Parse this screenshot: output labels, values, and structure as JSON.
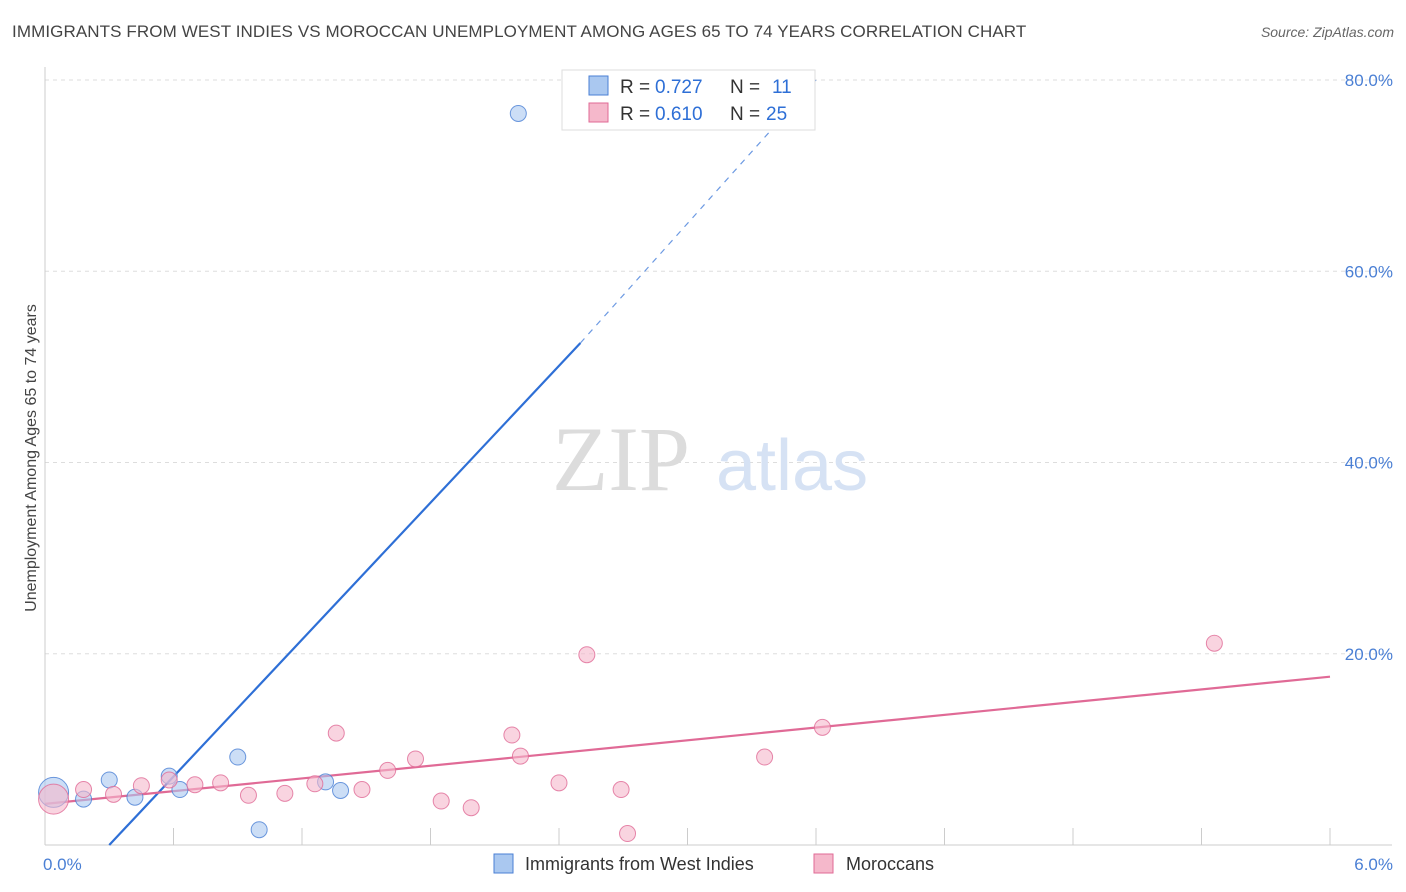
{
  "title": "IMMIGRANTS FROM WEST INDIES VS MOROCCAN UNEMPLOYMENT AMONG AGES 65 TO 74 YEARS CORRELATION CHART",
  "source": "Source: ZipAtlas.com",
  "watermark": {
    "zip": "ZIP",
    "atlas": "atlas"
  },
  "colors": {
    "blue": "#4a7fd4",
    "blue_fill": "#aac8f0",
    "blue_line": "#2e6fd6",
    "pink": "#e06a96",
    "pink_fill": "#f5b8cb",
    "grid": "#dddddd"
  },
  "chart_data": {
    "type": "scatter",
    "xlabel": "",
    "ylabel": "Unemployment Among Ages 65 to 74 years",
    "xlim": [
      0.0,
      6.0
    ],
    "ylim": [
      0.0,
      80.0
    ],
    "x_tick_labels": [
      {
        "value": 0.0,
        "label": "0.0%"
      },
      {
        "value": 6.0,
        "label": "6.0%"
      }
    ],
    "y_tick_labels": [
      {
        "value": 20,
        "label": "20.0%"
      },
      {
        "value": 40,
        "label": "40.0%"
      },
      {
        "value": 60,
        "label": "60.0%"
      },
      {
        "value": 80,
        "label": "80.0%"
      }
    ],
    "legend": [
      {
        "r_label": "R = ",
        "r_value": "0.727",
        "n_label": "N = ",
        "n_value": "11"
      },
      {
        "r_label": "R = ",
        "r_value": "0.610",
        "n_label": "N = ",
        "n_value": "25"
      }
    ],
    "series": [
      {
        "name": "Immigrants from West Indies",
        "color": "blue",
        "points": [
          {
            "x": 0.04,
            "y": 5.5,
            "big": true
          },
          {
            "x": 0.18,
            "y": 4.8
          },
          {
            "x": 0.3,
            "y": 6.8
          },
          {
            "x": 0.42,
            "y": 5.0
          },
          {
            "x": 0.58,
            "y": 7.2
          },
          {
            "x": 0.63,
            "y": 5.8
          },
          {
            "x": 0.9,
            "y": 9.2
          },
          {
            "x": 1.0,
            "y": 1.6
          },
          {
            "x": 1.31,
            "y": 6.6
          },
          {
            "x": 1.38,
            "y": 5.7
          },
          {
            "x": 2.21,
            "y": 76.5
          }
        ],
        "trend": {
          "x0": 0.3,
          "y0": 0.0,
          "x1": 2.5,
          "y1": 52.5,
          "dash_x1": 3.6,
          "dash_y1": 80.0
        }
      },
      {
        "name": "Moroccans",
        "color": "pink",
        "points": [
          {
            "x": 0.04,
            "y": 4.8,
            "big": true
          },
          {
            "x": 0.18,
            "y": 5.8
          },
          {
            "x": 0.32,
            "y": 5.3
          },
          {
            "x": 0.45,
            "y": 6.2
          },
          {
            "x": 0.58,
            "y": 6.8
          },
          {
            "x": 0.7,
            "y": 6.3
          },
          {
            "x": 0.82,
            "y": 6.5
          },
          {
            "x": 0.95,
            "y": 5.2
          },
          {
            "x": 1.12,
            "y": 5.4
          },
          {
            "x": 1.26,
            "y": 6.4
          },
          {
            "x": 1.36,
            "y": 11.7
          },
          {
            "x": 1.48,
            "y": 5.8
          },
          {
            "x": 1.6,
            "y": 7.8
          },
          {
            "x": 1.73,
            "y": 9.0
          },
          {
            "x": 1.85,
            "y": 4.6
          },
          {
            "x": 1.99,
            "y": 3.9
          },
          {
            "x": 2.18,
            "y": 11.5
          },
          {
            "x": 2.22,
            "y": 9.3
          },
          {
            "x": 2.4,
            "y": 6.5
          },
          {
            "x": 2.53,
            "y": 19.9
          },
          {
            "x": 2.69,
            "y": 5.8
          },
          {
            "x": 2.72,
            "y": 1.2
          },
          {
            "x": 3.36,
            "y": 9.2
          },
          {
            "x": 3.63,
            "y": 12.3
          },
          {
            "x": 5.46,
            "y": 21.1
          }
        ],
        "trend": {
          "x0": 0.0,
          "y0": 4.3,
          "x1": 6.0,
          "y1": 17.6
        }
      }
    ]
  }
}
